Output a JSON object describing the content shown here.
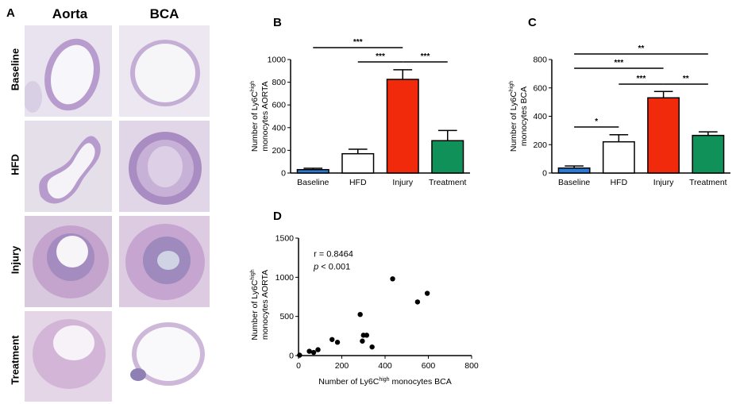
{
  "panel_a": {
    "letter": "A",
    "columns": [
      "Aorta",
      "BCA"
    ],
    "rows": [
      "Baseline",
      "HFD",
      "Injury",
      "Treatment"
    ]
  },
  "chart_data": [
    {
      "panel": "B",
      "type": "bar",
      "categories": [
        "Baseline",
        "HFD",
        "Injury",
        "Treatment"
      ],
      "values": [
        30,
        170,
        825,
        285
      ],
      "errors": [
        12,
        40,
        85,
        90
      ],
      "colors": [
        "#2a7bd6",
        "#ffffff",
        "#f02a0a",
        "#11915a"
      ],
      "ylabel_line1_pre": "Number of Ly6C",
      "ylabel_line1_sup": "high",
      "ylabel_line2": "monocytes AORTA",
      "ylim": [
        0,
        1000
      ],
      "yticks": [
        0,
        200,
        400,
        600,
        800,
        1000
      ],
      "significance": [
        {
          "from": 0,
          "to": 2,
          "label": "***"
        },
        {
          "from": 1,
          "to": 2,
          "label": "***"
        },
        {
          "from": 2,
          "to": 3,
          "label": "***"
        }
      ]
    },
    {
      "panel": "C",
      "type": "bar",
      "categories": [
        "Baseline",
        "HFD",
        "Injury",
        "Treatment"
      ],
      "values": [
        35,
        220,
        530,
        265
      ],
      "errors": [
        15,
        50,
        45,
        25
      ],
      "colors": [
        "#2a7bd6",
        "#ffffff",
        "#f02a0a",
        "#11915a"
      ],
      "ylabel_line1_pre": "Number of Ly6C",
      "ylabel_line1_sup": "high",
      "ylabel_line2": "monocytes BCA",
      "ylim": [
        0,
        800
      ],
      "yticks": [
        0,
        200,
        400,
        600,
        800
      ],
      "significance": [
        {
          "from": 0,
          "to": 3,
          "label": "**"
        },
        {
          "from": 0,
          "to": 2,
          "label": "***"
        },
        {
          "from": 0,
          "to": 1,
          "label": "*"
        },
        {
          "from": 1,
          "to": 2,
          "label": "***"
        },
        {
          "from": 2,
          "to": 3,
          "label": "**"
        }
      ]
    },
    {
      "panel": "D",
      "type": "scatter",
      "points": [
        [
          5,
          5
        ],
        [
          50,
          55
        ],
        [
          70,
          40
        ],
        [
          90,
          75
        ],
        [
          155,
          205
        ],
        [
          180,
          170
        ],
        [
          285,
          525
        ],
        [
          295,
          185
        ],
        [
          300,
          260
        ],
        [
          315,
          260
        ],
        [
          340,
          110
        ],
        [
          435,
          980
        ],
        [
          550,
          685
        ],
        [
          595,
          795
        ]
      ],
      "xlabel_pre": "Number of  Ly6C",
      "xlabel_sup": "high",
      "xlabel_post": " monocytes BCA",
      "ylabel_line1_pre": "Number of Ly6C",
      "ylabel_line1_sup": "high",
      "ylabel_line2": "monocytes AORTA",
      "xlim": [
        0,
        800
      ],
      "ylim": [
        0,
        1500
      ],
      "xticks": [
        0,
        200,
        400,
        600,
        800
      ],
      "yticks": [
        0,
        500,
        1000,
        1500
      ],
      "annotation_r": "r = 0.8464",
      "annotation_p_italic": "p",
      "annotation_p_rest": " < 0.001"
    }
  ]
}
